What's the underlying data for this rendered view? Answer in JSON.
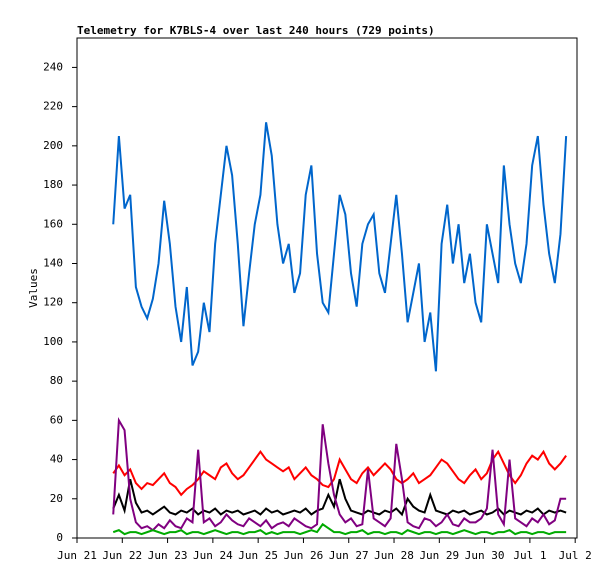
{
  "chart_data": {
    "type": "line",
    "title": "Telemetry for K7BLS-4 over last 240 hours (729 points)",
    "y_label": "Values",
    "xlim": [
      0,
      11.04
    ],
    "ylim": [
      0,
      255
    ],
    "xticks": [
      {
        "value": 0,
        "label": "Jun 21"
      },
      {
        "value": 1,
        "label": "Jun 22"
      },
      {
        "value": 2,
        "label": "Jun 23"
      },
      {
        "value": 3,
        "label": "Jun 24"
      },
      {
        "value": 4,
        "label": "Jun 25"
      },
      {
        "value": 5,
        "label": "Jun 26"
      },
      {
        "value": 6,
        "label": "Jun 27"
      },
      {
        "value": 7,
        "label": "Jun 28"
      },
      {
        "value": 8,
        "label": "Jun 29"
      },
      {
        "value": 9,
        "label": "Jun 30"
      },
      {
        "value": 10,
        "label": "Jul 1"
      },
      {
        "value": 11,
        "label": "Jul 2"
      }
    ],
    "yticks": [
      0,
      20,
      40,
      60,
      80,
      100,
      120,
      140,
      160,
      180,
      200,
      220,
      240
    ],
    "x": [
      0.8,
      0.925,
      1.05,
      1.175,
      1.3,
      1.425,
      1.55,
      1.675,
      1.8,
      1.925,
      2.05,
      2.175,
      2.3,
      2.425,
      2.55,
      2.675,
      2.8,
      2.925,
      3.05,
      3.175,
      3.3,
      3.425,
      3.55,
      3.675,
      3.8,
      3.925,
      4.05,
      4.175,
      4.3,
      4.425,
      4.55,
      4.675,
      4.8,
      4.925,
      5.05,
      5.175,
      5.3,
      5.425,
      5.55,
      5.675,
      5.8,
      5.925,
      6.05,
      6.175,
      6.3,
      6.425,
      6.55,
      6.675,
      6.8,
      6.925,
      7.05,
      7.175,
      7.3,
      7.425,
      7.55,
      7.675,
      7.8,
      7.925,
      8.05,
      8.175,
      8.3,
      8.425,
      8.55,
      8.675,
      8.8,
      8.925,
      9.05,
      9.175,
      9.3,
      9.425,
      9.55,
      9.675,
      9.8,
      9.925,
      10.05,
      10.175,
      10.3,
      10.425,
      10.55,
      10.675,
      10.8
    ],
    "series": [
      {
        "color": "#0066cc",
        "values": [
          160,
          205,
          168,
          175,
          128,
          118,
          112,
          122,
          140,
          172,
          150,
          118,
          100,
          128,
          88,
          95,
          120,
          105,
          150,
          175,
          200,
          185,
          150,
          108,
          135,
          160,
          175,
          212,
          195,
          160,
          140,
          150,
          125,
          135,
          175,
          190,
          145,
          120,
          115,
          145,
          175,
          165,
          135,
          118,
          150,
          160,
          165,
          135,
          125,
          150,
          175,
          145,
          110,
          125,
          140,
          100,
          115,
          85,
          150,
          170,
          140,
          160,
          130,
          145,
          120,
          110,
          160,
          145,
          130,
          190,
          160,
          140,
          130,
          150,
          190,
          205,
          170,
          145,
          130,
          155,
          205
        ]
      },
      {
        "color": "#ff0000",
        "values": [
          33,
          37,
          32,
          35,
          28,
          25,
          28,
          27,
          30,
          33,
          28,
          26,
          22,
          25,
          27,
          30,
          34,
          32,
          30,
          36,
          38,
          33,
          30,
          32,
          36,
          40,
          44,
          40,
          38,
          36,
          34,
          36,
          30,
          33,
          36,
          32,
          30,
          27,
          26,
          30,
          40,
          35,
          30,
          28,
          33,
          36,
          32,
          35,
          38,
          35,
          30,
          28,
          30,
          33,
          28,
          30,
          32,
          36,
          40,
          38,
          34,
          30,
          28,
          32,
          35,
          30,
          33,
          40,
          44,
          38,
          32,
          28,
          32,
          38,
          42,
          40,
          44,
          38,
          35,
          38,
          42
        ]
      },
      {
        "color": "#000000",
        "values": [
          15,
          22,
          14,
          30,
          18,
          13,
          14,
          12,
          14,
          16,
          13,
          12,
          14,
          13,
          15,
          12,
          14,
          13,
          15,
          12,
          14,
          13,
          14,
          12,
          13,
          14,
          12,
          15,
          13,
          14,
          12,
          13,
          14,
          13,
          15,
          12,
          14,
          15,
          22,
          16,
          30,
          20,
          14,
          13,
          12,
          14,
          13,
          12,
          14,
          13,
          15,
          12,
          20,
          16,
          14,
          13,
          22,
          14,
          13,
          12,
          14,
          13,
          14,
          12,
          13,
          14,
          12,
          13,
          15,
          12,
          14,
          13,
          12,
          14,
          13,
          15,
          12,
          14,
          13,
          14,
          13
        ]
      },
      {
        "color": "#800080",
        "values": [
          12,
          60,
          55,
          20,
          8,
          5,
          6,
          4,
          7,
          5,
          9,
          6,
          5,
          10,
          8,
          45,
          8,
          10,
          6,
          8,
          12,
          9,
          7,
          6,
          10,
          8,
          6,
          9,
          5,
          7,
          8,
          6,
          10,
          8,
          6,
          5,
          7,
          58,
          38,
          22,
          12,
          8,
          10,
          6,
          7,
          35,
          10,
          8,
          6,
          10,
          48,
          30,
          8,
          6,
          5,
          10,
          9,
          6,
          8,
          12,
          7,
          6,
          10,
          8,
          8,
          10,
          15,
          45,
          12,
          7,
          40,
          10,
          8,
          6,
          10,
          8,
          12,
          7,
          9,
          20,
          20
        ]
      },
      {
        "color": "#00aa00",
        "values": [
          3,
          4,
          2,
          3,
          3,
          2,
          3,
          4,
          3,
          2,
          3,
          3,
          4,
          2,
          3,
          3,
          2,
          3,
          4,
          3,
          2,
          3,
          3,
          2,
          3,
          3,
          4,
          2,
          3,
          2,
          3,
          3,
          3,
          2,
          3,
          4,
          3,
          7,
          5,
          3,
          3,
          2,
          3,
          3,
          4,
          2,
          3,
          3,
          2,
          3,
          3,
          2,
          4,
          3,
          2,
          3,
          3,
          2,
          3,
          3,
          2,
          3,
          4,
          3,
          2,
          3,
          3,
          2,
          3,
          3,
          4,
          2,
          3,
          3,
          2,
          3,
          3,
          2,
          3,
          3,
          3
        ]
      }
    ]
  }
}
